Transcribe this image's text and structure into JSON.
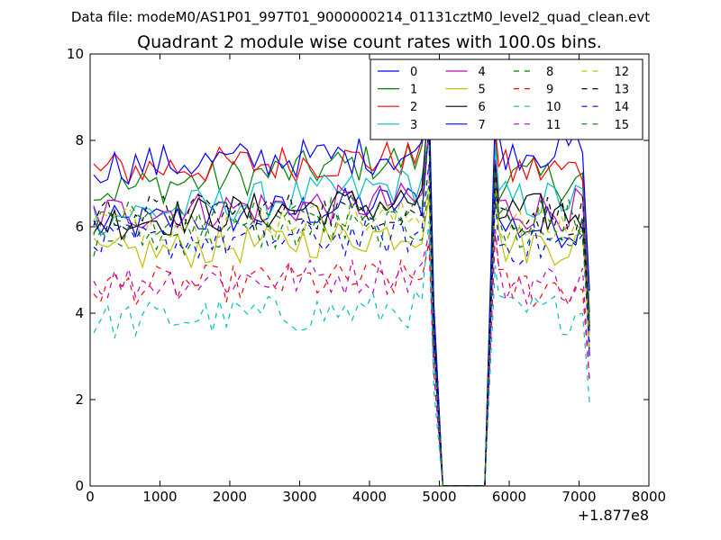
{
  "figure": {
    "suptitle": "Data file: modeM0/AS1P01_997T01_9000000214_01131cztM0_level2_quad_clean.evt"
  },
  "chart_data": {
    "type": "line",
    "title": "Quadrant 2 module wise count rates with 100.0s bins.",
    "xlabel": "",
    "ylabel": "",
    "xlim": [
      0,
      8000
    ],
    "ylim": [
      0,
      10
    ],
    "x_ticks": [
      0,
      1000,
      2000,
      3000,
      4000,
      5000,
      6000,
      7000,
      8000
    ],
    "y_ticks": [
      0,
      2,
      4,
      6,
      8,
      10
    ],
    "x_offset_label": "+1.877e8",
    "legend_position": "top-right",
    "gap": {
      "drop_start": 4900,
      "zero_from": 5050,
      "zero_to": 5650,
      "rise_end": 5800
    },
    "spike": {
      "x": 4850
    },
    "series": [
      {
        "name": "0",
        "color": "#0000ff",
        "style": "solid",
        "level_start": 6.0,
        "level_end": 6.6,
        "post_level": 6.0
      },
      {
        "name": "1",
        "color": "#008000",
        "style": "solid",
        "level_start": 6.8,
        "level_end": 7.6,
        "post_level": 7.1
      },
      {
        "name": "2",
        "color": "#ff0000",
        "style": "solid",
        "level_start": 7.3,
        "level_end": 7.6,
        "post_level": 7.3
      },
      {
        "name": "3",
        "color": "#00bfbf",
        "style": "solid",
        "level_start": 6.2,
        "level_end": 7.0,
        "post_level": 6.6
      },
      {
        "name": "4",
        "color": "#bf00bf",
        "style": "solid",
        "level_start": 6.3,
        "level_end": 6.6,
        "post_level": 6.4
      },
      {
        "name": "5",
        "color": "#bfbf00",
        "style": "solid",
        "level_start": 5.3,
        "level_end": 5.9,
        "post_level": 5.6
      },
      {
        "name": "6",
        "color": "#000000",
        "style": "solid",
        "level_start": 6.1,
        "level_end": 6.6,
        "post_level": 6.3
      },
      {
        "name": "7",
        "color": "#0000ff",
        "style": "solid",
        "level_start": 7.4,
        "level_end": 7.7,
        "post_level": 7.8
      },
      {
        "name": "8",
        "color": "#008000",
        "style": "dashed",
        "level_start": 5.7,
        "level_end": 6.0,
        "post_level": 5.8
      },
      {
        "name": "9",
        "color": "#ff0000",
        "style": "dashed",
        "level_start": 4.6,
        "level_end": 4.8,
        "post_level": 4.6
      },
      {
        "name": "10",
        "color": "#00bfbf",
        "style": "dashed",
        "level_start": 3.8,
        "level_end": 4.1,
        "post_level": 4.0
      },
      {
        "name": "11",
        "color": "#bf00bf",
        "style": "dashed",
        "level_start": 4.7,
        "level_end": 4.9,
        "post_level": 4.7
      },
      {
        "name": "12",
        "color": "#bfbf00",
        "style": "dashed",
        "level_start": 6.1,
        "level_end": 6.2,
        "post_level": 6.0
      },
      {
        "name": "13",
        "color": "#000000",
        "style": "dashed",
        "level_start": 6.3,
        "level_end": 6.4,
        "post_level": 6.3
      },
      {
        "name": "14",
        "color": "#0000ff",
        "style": "dashed",
        "level_start": 5.6,
        "level_end": 5.8,
        "post_level": 5.6
      },
      {
        "name": "15",
        "color": "#008000",
        "style": "dashed",
        "level_start": 6.2,
        "level_end": 6.3,
        "post_level": 6.2
      }
    ]
  }
}
